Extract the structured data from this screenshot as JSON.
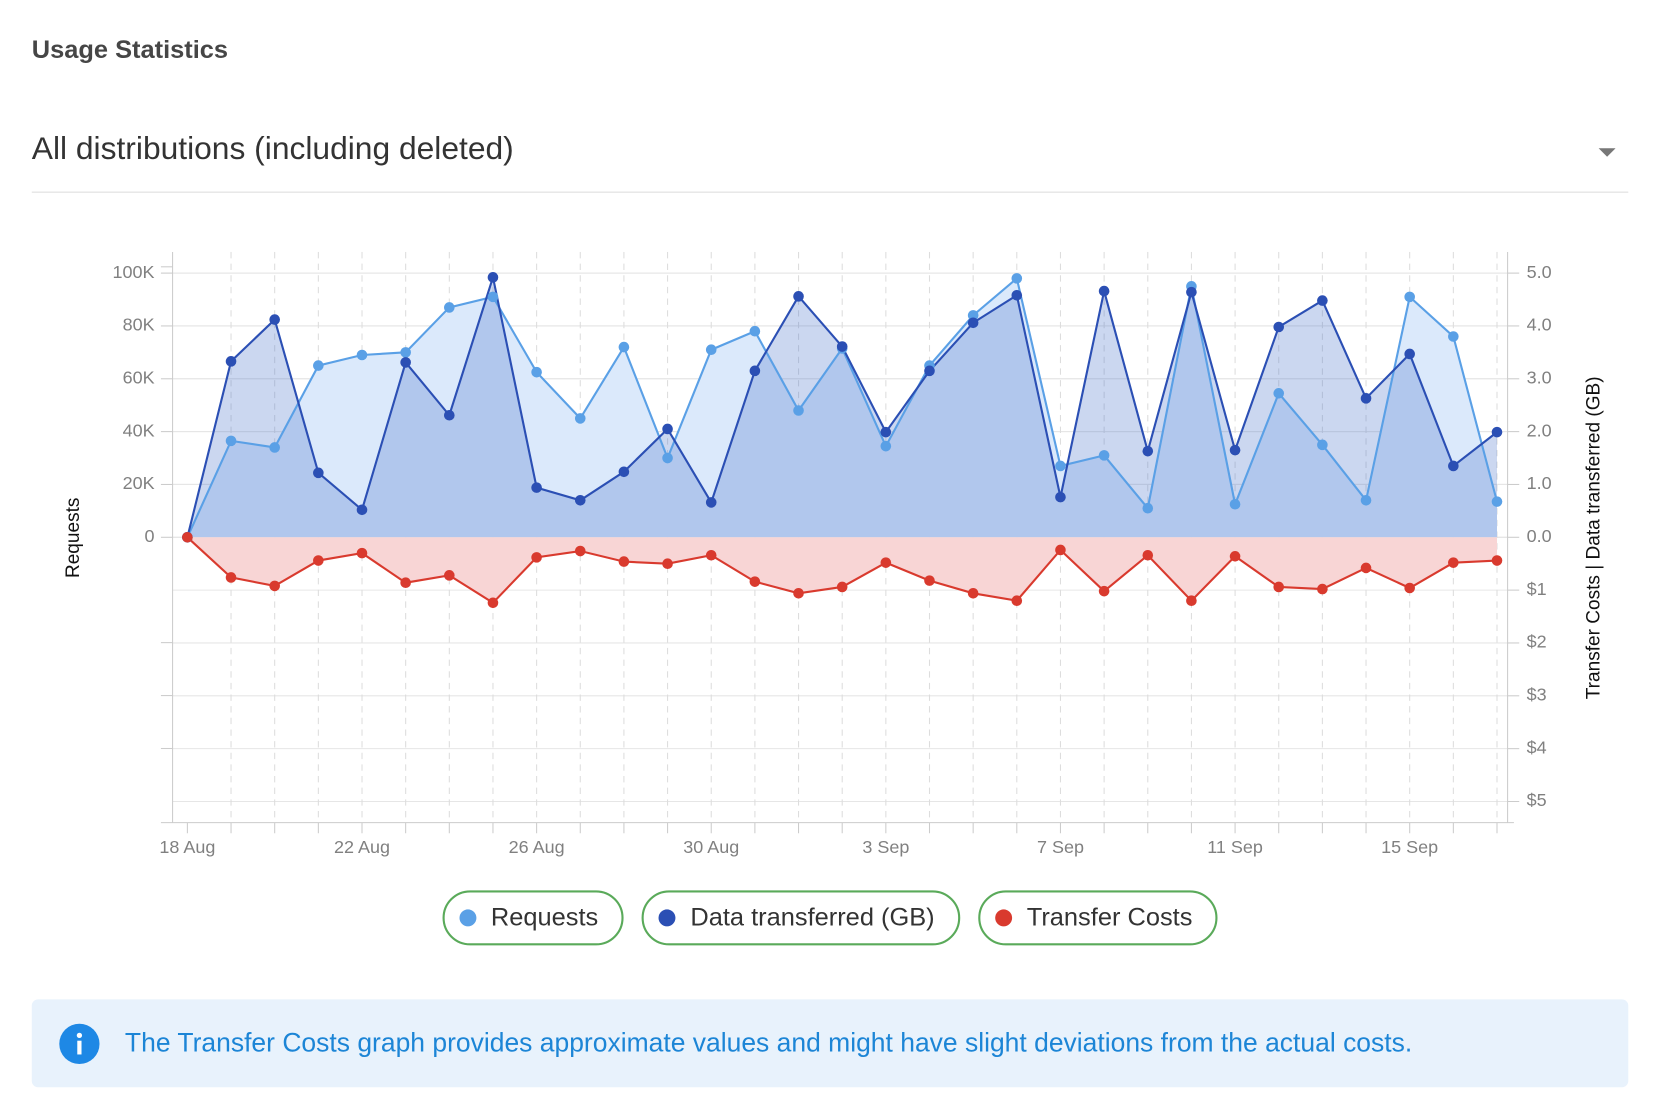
{
  "header": {
    "title": "Usage Statistics"
  },
  "filter": {
    "selected": "All distributions (including deleted)"
  },
  "chart_data": {
    "type": "line",
    "y_label": "Requests",
    "y2_label": "Transfer Costs | Data transferred (GB)",
    "categories": [
      "18 Aug",
      null,
      null,
      null,
      "22 Aug",
      null,
      null,
      null,
      "26 Aug",
      null,
      null,
      null,
      "30 Aug",
      null,
      null,
      null,
      "3 Sep",
      null,
      null,
      null,
      "7 Sep",
      null,
      null,
      null,
      "11 Sep",
      null,
      null,
      null,
      "15 Sep",
      null,
      null
    ],
    "series": [
      {
        "name": "Requests",
        "color": "#5aa0e6",
        "fill": "#dbe9fb",
        "axis": "y",
        "values": [
          0,
          36500,
          34000,
          65000,
          69000,
          70000,
          87000,
          91000,
          62500,
          45000,
          72000,
          30000,
          71000,
          78000,
          48000,
          71500,
          34500,
          65000,
          84000,
          98000,
          27000,
          31000,
          11000,
          95000,
          12500,
          54500,
          35000,
          14000,
          91000,
          76000,
          13500
        ]
      },
      {
        "name": "Data transferred (GB)",
        "color": "#2b4fb4",
        "fill": "rgba(70,110,200,0.28)",
        "axis": "y2",
        "values": [
          0,
          3.33,
          4.12,
          1.22,
          0.52,
          3.31,
          2.31,
          4.92,
          0.94,
          0.7,
          1.24,
          2.05,
          0.66,
          3.15,
          4.56,
          3.61,
          1.99,
          3.15,
          4.06,
          4.58,
          0.76,
          4.66,
          1.63,
          4.64,
          1.65,
          3.98,
          4.48,
          2.63,
          3.47,
          1.35,
          1.99
        ]
      },
      {
        "name": "Transfer Costs",
        "color": "#d93a2e",
        "fill": "#f8d5d5",
        "axis": "y3",
        "values": [
          0,
          0.76,
          0.92,
          0.44,
          0.3,
          0.86,
          0.72,
          1.24,
          0.38,
          0.26,
          0.46,
          0.5,
          0.34,
          0.84,
          1.06,
          0.94,
          0.48,
          0.82,
          1.06,
          1.2,
          0.24,
          1.02,
          0.34,
          1.2,
          0.36,
          0.94,
          0.98,
          0.58,
          0.96,
          0.48,
          0.44
        ]
      }
    ],
    "ylim": [
      -108000,
      108000
    ],
    "yticks": [
      0,
      {
        "value": 20000,
        "label": "20K"
      },
      {
        "value": 40000,
        "label": "40K"
      },
      {
        "value": 60000,
        "label": "60K"
      },
      {
        "value": 80000,
        "label": "80K"
      },
      {
        "value": 100000,
        "label": "100K"
      }
    ],
    "y2lim": [
      -5.4,
      5.4
    ],
    "y2ticks": [
      {
        "value": 0,
        "label": "0.0"
      },
      {
        "value": 1,
        "label": "1.0"
      },
      {
        "value": 2,
        "label": "2.0"
      },
      {
        "value": 3,
        "label": "3.0"
      },
      {
        "value": 4,
        "label": "4.0"
      },
      {
        "value": 5,
        "label": "5.0"
      }
    ],
    "y3lim": [
      5.4,
      -5.4
    ],
    "y3ticks": [
      {
        "value": 1,
        "label": "$1"
      },
      {
        "value": 2,
        "label": "$2"
      },
      {
        "value": 3,
        "label": "$3"
      },
      {
        "value": 4,
        "label": "$4"
      },
      {
        "value": 5,
        "label": "$5"
      }
    ],
    "grid": true
  },
  "notice": {
    "text": "The Transfer Costs graph provides approximate values and might have slight deviations from the actual costs."
  }
}
